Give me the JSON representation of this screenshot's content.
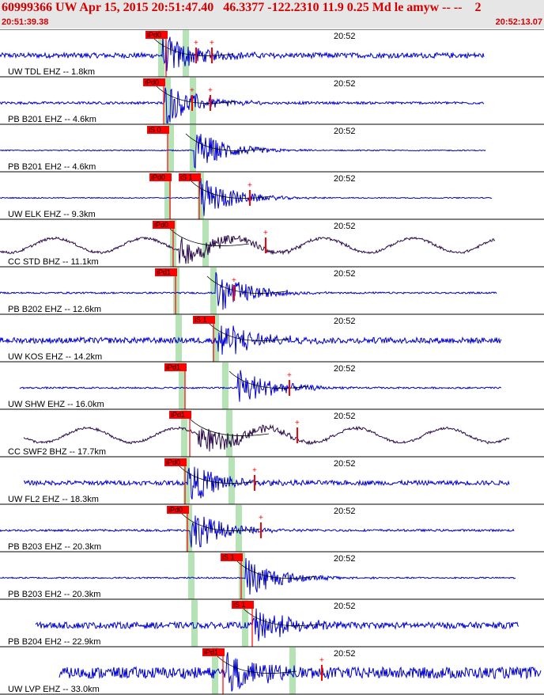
{
  "header": {
    "title": "60999366 UW Apr 15, 2015 20:51:47.40   46.3377 -122.2310 11.9 0.25 Md le amyw -- --    2",
    "start_time": "20:51:39.38",
    "end_time": "20:52:13.07"
  },
  "colors": {
    "header_text": "#d40000",
    "header_bg": "#e6e6e6",
    "trace_blue": "#0000cc",
    "trace_dark": "#2a0a4a",
    "pick": "#ff0000",
    "pick_window": "#b6e3b6"
  },
  "chart_data": {
    "type": "seismogram",
    "time_range": [
      "20:51:39.38",
      "20:52:13.07"
    ],
    "minute_marker_label": "20:52",
    "traces": [
      {
        "label": "UW TDL EHZ -- 1.8km",
        "color": "blue",
        "picks": [
          "iPd0"
        ],
        "amp": 0.25
      },
      {
        "label": "PB B201 EHZ -- 4.6km",
        "color": "blue",
        "picks": [
          "iPd0"
        ],
        "amp": 0.12
      },
      {
        "label": "PB B201 EH2 -- 4.6km",
        "color": "blue",
        "picks": [
          "iS 0"
        ],
        "amp": 0.05
      },
      {
        "label": "UW ELK EHZ -- 9.3km",
        "color": "blue",
        "picks": [
          "iPd0",
          "iS 1"
        ],
        "amp": 0.05
      },
      {
        "label": "CC STD BHZ -- 11.1km",
        "color": "dark",
        "picks": [
          "iPd0"
        ],
        "amp": 0.25
      },
      {
        "label": "PB B202 EHZ -- 12.6km",
        "color": "blue",
        "picks": [
          "iPd1"
        ],
        "amp": 0.08
      },
      {
        "label": "UW KOS EHZ -- 14.2km",
        "color": "blue",
        "picks": [
          "iS 1"
        ],
        "amp": 0.28
      },
      {
        "label": "UW SHW EHZ -- 16.0km",
        "color": "blue",
        "picks": [
          "iPd1"
        ],
        "amp": 0.08
      },
      {
        "label": "CC SWF2 BHZ -- 17.7km",
        "color": "dark",
        "picks": [
          "iPd1"
        ],
        "amp": 0.1
      },
      {
        "label": "UW FL2 EHZ -- 18.3km",
        "color": "blue",
        "picks": [
          "iPd0"
        ],
        "amp": 0.22
      },
      {
        "label": "PB B203 EHZ -- 20.3km",
        "color": "blue",
        "picks": [
          "iPd0"
        ],
        "amp": 0.1
      },
      {
        "label": "PB B203 EH2 -- 20.3km",
        "color": "blue",
        "picks": [
          "iS 1"
        ],
        "amp": 0.07
      },
      {
        "label": "PB B204 EH2 -- 22.9km",
        "color": "blue",
        "picks": [
          "iS 1"
        ],
        "amp": 0.3
      },
      {
        "label": "UW LVP EHZ -- 33.0km",
        "color": "blue",
        "picks": [
          "iPd1"
        ],
        "amp": 0.55
      }
    ]
  }
}
